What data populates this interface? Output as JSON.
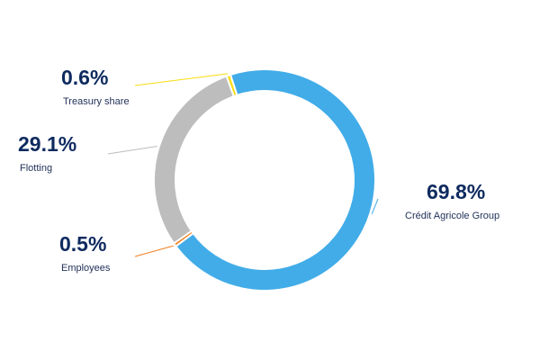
{
  "chart_data": {
    "type": "pie",
    "variant": "donut",
    "title": "",
    "legend": "none",
    "slices": [
      {
        "label": "Crédit Agricole Group",
        "value": 69.8,
        "display": "69.8%",
        "color": "#41ace8"
      },
      {
        "label": "Employees",
        "value": 0.5,
        "display": "0.5%",
        "color": "#f07f1f"
      },
      {
        "label": "Flotting",
        "value": 29.1,
        "display": "29.1%",
        "color": "#bdbdbd"
      },
      {
        "label": "Treasury share",
        "value": 0.6,
        "display": "0.6%",
        "color": "#f9dc10"
      }
    ]
  }
}
